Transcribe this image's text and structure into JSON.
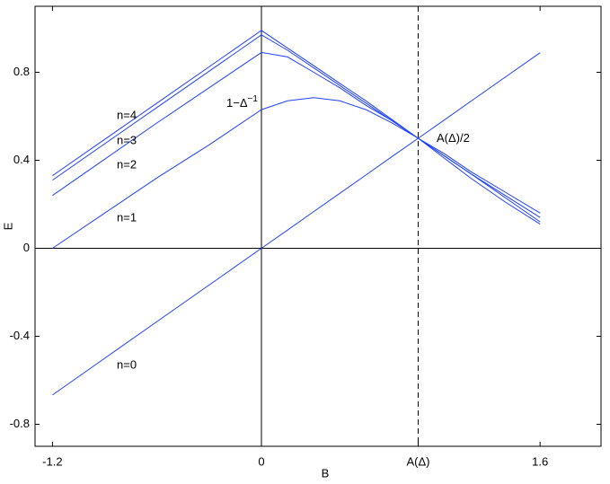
{
  "chart_data": {
    "type": "line",
    "xlabel": "B",
    "ylabel": "E",
    "xlim": [
      -1.3,
      1.95
    ],
    "ylim": [
      -0.9,
      1.1
    ],
    "xticks": [
      -1.2,
      0,
      {
        "value": 0.9,
        "label": "A(Δ)"
      },
      1.6
    ],
    "yticks": [
      -0.8,
      -0.4,
      0,
      0.4,
      0.8
    ],
    "zero_lines": true,
    "x": [
      -1.2,
      -0.9,
      -0.6,
      -0.3,
      0,
      0.15,
      0.3,
      0.45,
      0.6,
      0.75,
      0.9,
      1.05,
      1.2,
      1.4,
      1.6
    ],
    "series": [
      {
        "name": "n=0",
        "color": "#2040ff",
        "values": [
          -0.667,
          -0.5,
          -0.333,
          -0.167,
          0,
          0.083,
          0.167,
          0.25,
          0.333,
          0.417,
          0.5,
          0.583,
          0.667,
          0.778,
          0.889
        ]
      },
      {
        "name": "n=1",
        "color": "#2040ff",
        "values": [
          0,
          0.16,
          0.32,
          0.47,
          0.63,
          0.67,
          0.685,
          0.67,
          0.63,
          0.57,
          0.5,
          0.41,
          0.32,
          0.21,
          0.11
        ]
      },
      {
        "name": "n=2",
        "color": "#2040ff",
        "values": [
          0.24,
          0.405,
          0.57,
          0.73,
          0.89,
          0.87,
          0.8,
          0.73,
          0.65,
          0.58,
          0.5,
          0.42,
          0.34,
          0.23,
          0.12
        ]
      },
      {
        "name": "n=3",
        "color": "#2040ff",
        "values": [
          0.31,
          0.475,
          0.64,
          0.805,
          0.97,
          0.9,
          0.82,
          0.74,
          0.66,
          0.58,
          0.5,
          0.42,
          0.34,
          0.24,
          0.14
        ]
      },
      {
        "name": "n=4",
        "color": "#2040ff",
        "values": [
          0.33,
          0.495,
          0.66,
          0.825,
          0.99,
          0.91,
          0.83,
          0.75,
          0.67,
          0.585,
          0.5,
          0.43,
          0.35,
          0.255,
          0.16
        ]
      }
    ],
    "annotations": [
      {
        "text": "1−Δ",
        "superscript": "−1"
      },
      {
        "text": "A(Δ)/2"
      }
    ]
  }
}
